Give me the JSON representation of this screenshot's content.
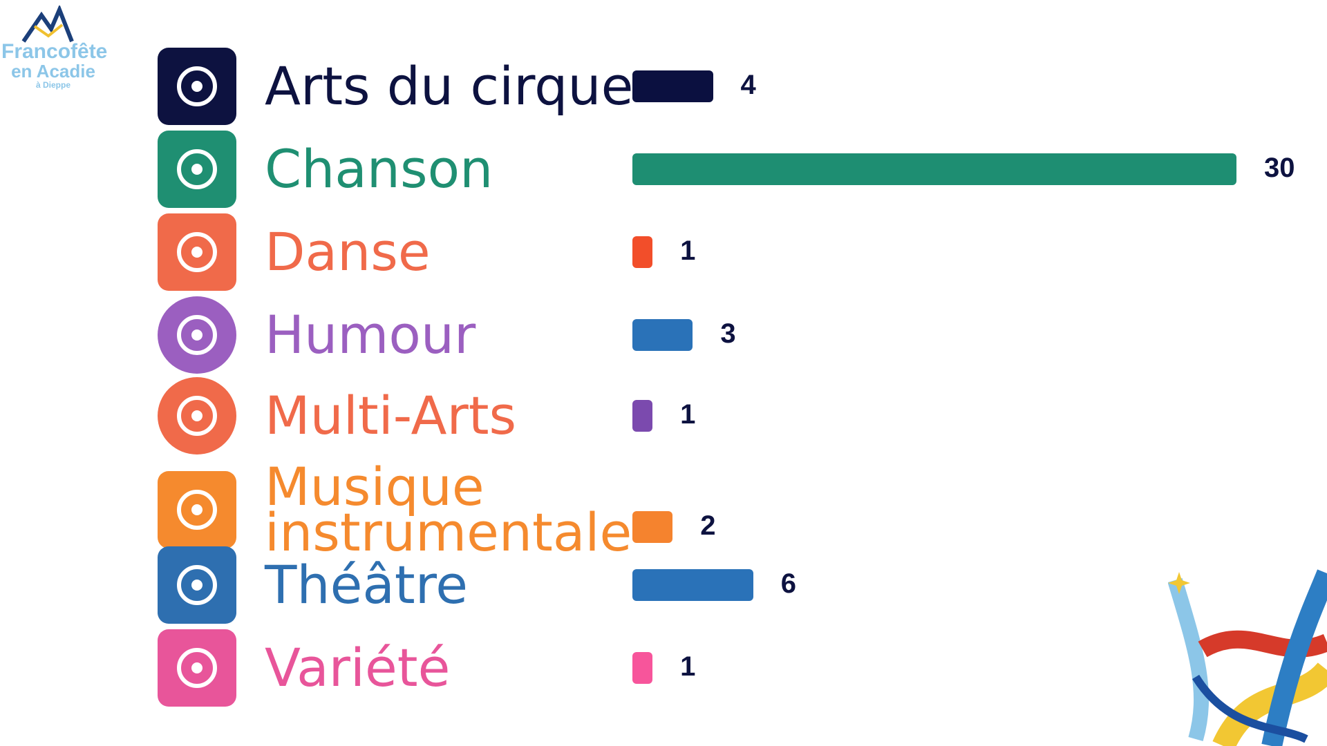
{
  "logo": {
    "line1": "Francofête",
    "line2": "en Acadie",
    "line3": "à Dieppe"
  },
  "chart_data": {
    "type": "bar",
    "orientation": "horizontal",
    "categories": [
      "Arts du cirque",
      "Chanson",
      "Danse",
      "Humour",
      "Multi-Arts",
      "Musique instrumentale",
      "Théâtre",
      "Variété"
    ],
    "values": [
      4,
      30,
      1,
      3,
      1,
      2,
      6,
      1
    ],
    "colors": [
      "#0b1040",
      "#1e8e72",
      "#f24e2a",
      "#2a72b8",
      "#7b4aae",
      "#f5832e",
      "#2a72b8",
      "#f7559b"
    ],
    "label_colors": [
      "#0d1240",
      "#1f8f72",
      "#f06a4a",
      "#9b5fc0",
      "#f06a4a",
      "#f58a2e",
      "#2e6fb0",
      "#e8559a"
    ]
  }
}
